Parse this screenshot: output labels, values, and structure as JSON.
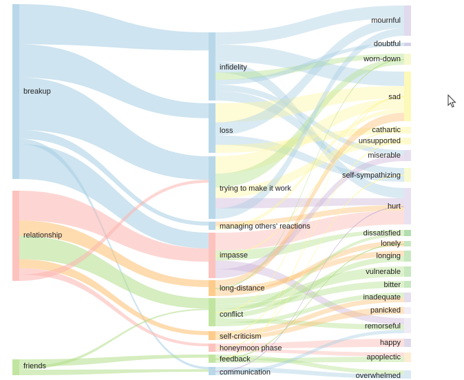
{
  "diagram": {
    "type": "sankey",
    "sources": [
      {
        "id": "breakup",
        "label": "breakup",
        "color": "#a6cee3"
      },
      {
        "id": "relationship",
        "label": "relationship",
        "color": "#fbb4ae"
      },
      {
        "id": "friends",
        "label": "friends",
        "color": "#b2df8a"
      }
    ],
    "topics": [
      {
        "id": "infidelity",
        "label": "infidelity",
        "color": "#a6cee3"
      },
      {
        "id": "loss",
        "label": "loss",
        "color": "#a6cee3"
      },
      {
        "id": "trying",
        "label": "trying to make it work",
        "color": "#a6cee3"
      },
      {
        "id": "managing",
        "label": "managing others' reactions",
        "color": "#a6cee3"
      },
      {
        "id": "impasse",
        "label": "impasse",
        "color": "#fbb4ae"
      },
      {
        "id": "longdistance",
        "label": "long-distance",
        "color": "#fdbf6f"
      },
      {
        "id": "conflict",
        "label": "conflict",
        "color": "#b2df8a"
      },
      {
        "id": "selfcriticism",
        "label": "self-criticism",
        "color": "#fdbf6f"
      },
      {
        "id": "honeymoon",
        "label": "honeymoon phase",
        "color": "#fbb4ae"
      },
      {
        "id": "feedback",
        "label": "feedback",
        "color": "#b2df8a"
      },
      {
        "id": "communication",
        "label": "communication",
        "color": "#a6cee3"
      }
    ],
    "emotions": [
      {
        "id": "mournful",
        "label": "mournful",
        "color": "#d9cfe8"
      },
      {
        "id": "doubtful",
        "label": "doubtful",
        "color": "#cbc4e4"
      },
      {
        "id": "worndown",
        "label": "worn-down",
        "color": "#f2f7c0"
      },
      {
        "id": "sad",
        "label": "sad",
        "color": "#fbf8a8"
      },
      {
        "id": "cathartic",
        "label": "cathartic",
        "color": "#fdf9c4"
      },
      {
        "id": "unsupported",
        "label": "unsupported",
        "color": "#fdf9c4"
      },
      {
        "id": "miserable",
        "label": "miserable",
        "color": "#ddd6ea"
      },
      {
        "id": "selfsympathizing",
        "label": "self-sympathizing",
        "color": "#f6f9c6"
      },
      {
        "id": "hurt",
        "label": "hurt",
        "color": "#e2daee"
      },
      {
        "id": "dissatisfied",
        "label": "dissatisfied",
        "color": "#9fd49a"
      },
      {
        "id": "lonely",
        "label": "lonely",
        "color": "#b9e2b0"
      },
      {
        "id": "longing",
        "label": "longing",
        "color": "#b9e2b0"
      },
      {
        "id": "vulnerable",
        "label": "vulnerable",
        "color": "#b9e2b0"
      },
      {
        "id": "bitter",
        "label": "bitter",
        "color": "#b9e2b0"
      },
      {
        "id": "inadequate",
        "label": "inadequate",
        "color": "#ddd6ea"
      },
      {
        "id": "panicked",
        "label": "panicked",
        "color": "#eeeaf4"
      },
      {
        "id": "remorseful",
        "label": "remorseful",
        "color": "#ece7f3"
      },
      {
        "id": "happy",
        "label": "happy",
        "color": "#d5cfe6"
      },
      {
        "id": "apoplectic",
        "label": "apoplectic",
        "color": "#fde8c8"
      },
      {
        "id": "overwhelmed",
        "label": "overwhelmed",
        "color": "#cfe3f0"
      }
    ]
  }
}
